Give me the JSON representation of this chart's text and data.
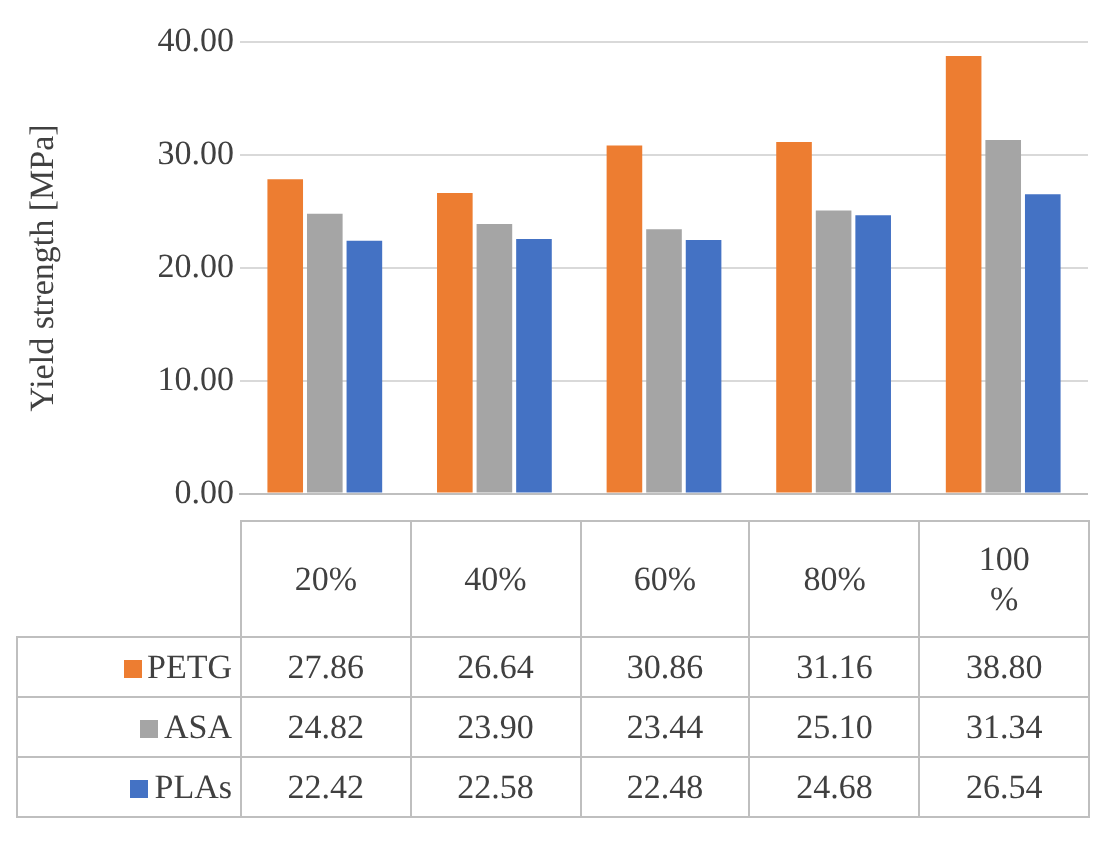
{
  "chart_data": {
    "type": "bar",
    "ylabel": "Yield strength [MPa]",
    "categories": [
      "20%",
      "40%",
      "60%",
      "80%",
      "100 %"
    ],
    "series": [
      {
        "name": "PETG",
        "color": "#ed7d31",
        "values": [
          27.86,
          26.64,
          30.86,
          31.16,
          38.8
        ],
        "value_labels": [
          "27.86",
          "26.64",
          "30.86",
          "31.16",
          "38.80"
        ]
      },
      {
        "name": "ASA",
        "color": "#a5a5a5",
        "values": [
          24.82,
          23.9,
          23.44,
          25.1,
          31.34
        ],
        "value_labels": [
          "24.82",
          "23.90",
          "23.44",
          "25.10",
          "31.34"
        ]
      },
      {
        "name": "PLAs",
        "color": "#4472c4",
        "values": [
          22.42,
          22.58,
          22.48,
          24.68,
          26.54
        ],
        "value_labels": [
          "22.42",
          "22.58",
          "22.48",
          "24.68",
          "26.54"
        ]
      }
    ],
    "ylim": [
      0,
      40
    ],
    "yticks": [
      {
        "value": 0,
        "label": "0.00"
      },
      {
        "value": 10,
        "label": "10.00"
      },
      {
        "value": 20,
        "label": "20.00"
      },
      {
        "value": 30,
        "label": "30.00"
      },
      {
        "value": 40,
        "label": "40.00"
      }
    ],
    "grid": "y",
    "legend": "bottom"
  }
}
